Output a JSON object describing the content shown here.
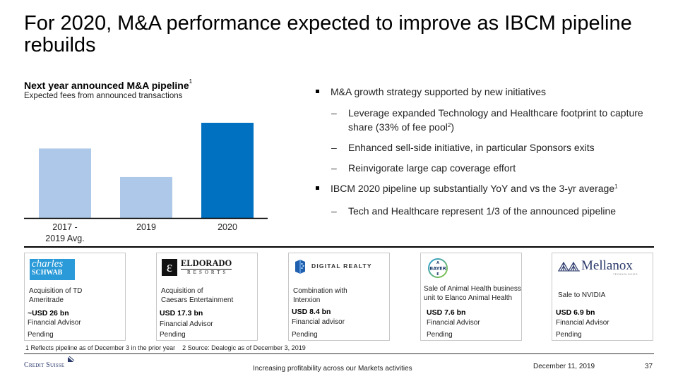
{
  "slide": {
    "title": "For 2020, M&A performance expected to improve as IBCM pipeline rebuilds"
  },
  "chart_section": {
    "title": "Next year announced M&A pipeline",
    "title_footnote": "1",
    "subtitle": "Expected fees from announced transactions"
  },
  "chart_data": {
    "type": "bar",
    "title": "Next year announced M&A pipeline",
    "subtitle": "Expected fees from announced transactions",
    "xlabel": "",
    "ylabel": "",
    "y_axis_shown": false,
    "grid": false,
    "note": "No y-axis or data labels; values are relative indices estimated from bar heights (2020 = 100)",
    "categories": [
      "2017 - 2019 Avg.",
      "2019",
      "2020"
    ],
    "category_lines": [
      [
        "2017 -",
        "2019 Avg."
      ],
      [
        "2019"
      ],
      [
        "2020"
      ]
    ],
    "values": [
      73,
      43,
      100
    ],
    "ylim": [
      0,
      100
    ],
    "colors": [
      "#adc8e8",
      "#adc8e8",
      "#0070c0"
    ]
  },
  "bullets": [
    {
      "level": 1,
      "text": "M&A growth strategy supported by new initiatives",
      "sup": ""
    },
    {
      "level": 2,
      "text": "Leverage expanded Technology and Healthcare footprint to capture share (33% of fee pool",
      "sup": "2",
      "suffix": ")"
    },
    {
      "level": 2,
      "text": "Enhanced sell-side initiative, in particular Sponsors exits",
      "sup": ""
    },
    {
      "level": 2,
      "text": "Reinvigorate large cap coverage effort",
      "sup": ""
    },
    {
      "level": 1,
      "text": "IBCM 2020 pipeline up substantially YoY and vs the 3-yr average",
      "sup": "1"
    },
    {
      "level": 2,
      "text": "Tech and Healthcare represent 1/3 of the announced pipeline",
      "sup": ""
    }
  ],
  "deals": [
    {
      "logo": "Charles Schwab",
      "logo_line1": "charles",
      "logo_line2": "SCHWAB",
      "description": "Acquisition of TD Ameritrade",
      "desc_line1": "Acquisition of TD",
      "desc_line2": "Ameritrade",
      "value": "~USD 26 bn",
      "role": "Financial Advisor",
      "status": "Pending"
    },
    {
      "logo": "Eldorado Resorts",
      "logo_line1": "ELDORADO",
      "logo_line2": "RESORTS",
      "description": "Acquisition of Caesars Entertainment",
      "desc_line1": "Acquisition of",
      "desc_line2": "Caesars Entertainment",
      "value": "USD 17.3 bn",
      "role": "Financial Advisor",
      "status": "Pending"
    },
    {
      "logo": "Digital Realty",
      "logo_line1": "DIGITAL REALTY",
      "logo_line2": "",
      "description": "Combination with Interxion",
      "desc_line1": "Combination with",
      "desc_line2": "Interxion",
      "value": "USD 8.4 bn",
      "role": "Financial advisor",
      "status": "Pending"
    },
    {
      "logo": "Bayer",
      "logo_line1": "BAYER",
      "logo_line2": "",
      "description": "Sale of Animal Health business unit to Elanco Animal Health",
      "desc_line1": "Sale of Animal Health business",
      "desc_line2": "unit to Elanco Animal Health",
      "value": "USD 7.6 bn",
      "role": "Financial Advisor",
      "status": "Pending"
    },
    {
      "logo": "Mellanox Technologies",
      "logo_line1": "Mellanox",
      "logo_line2": "TECHNOLOGIES",
      "description": "Sale to NVIDIA",
      "desc_line1": "Sale to NVIDIA",
      "desc_line2": "",
      "value": "USD 6.9 bn",
      "role": "Financial Advisor",
      "status": "Pending"
    }
  ],
  "footnotes": [
    "1 Reflects pipeline as of December 3 in the prior year",
    "2 Source: Dealogic as of December 3, 2019"
  ],
  "footer": {
    "logo": "Credit Suisse",
    "center_text": "Increasing profitability across our Markets activities",
    "date": "December 11, 2019",
    "page_number": "37"
  },
  "colors": {
    "bar_light": "#adc8e8",
    "bar_dark": "#0070c0",
    "schwab_blue": "#2a9ad8",
    "mellanox_navy": "#2b3a6b",
    "credit_suisse_navy": "#2b3a6b"
  }
}
